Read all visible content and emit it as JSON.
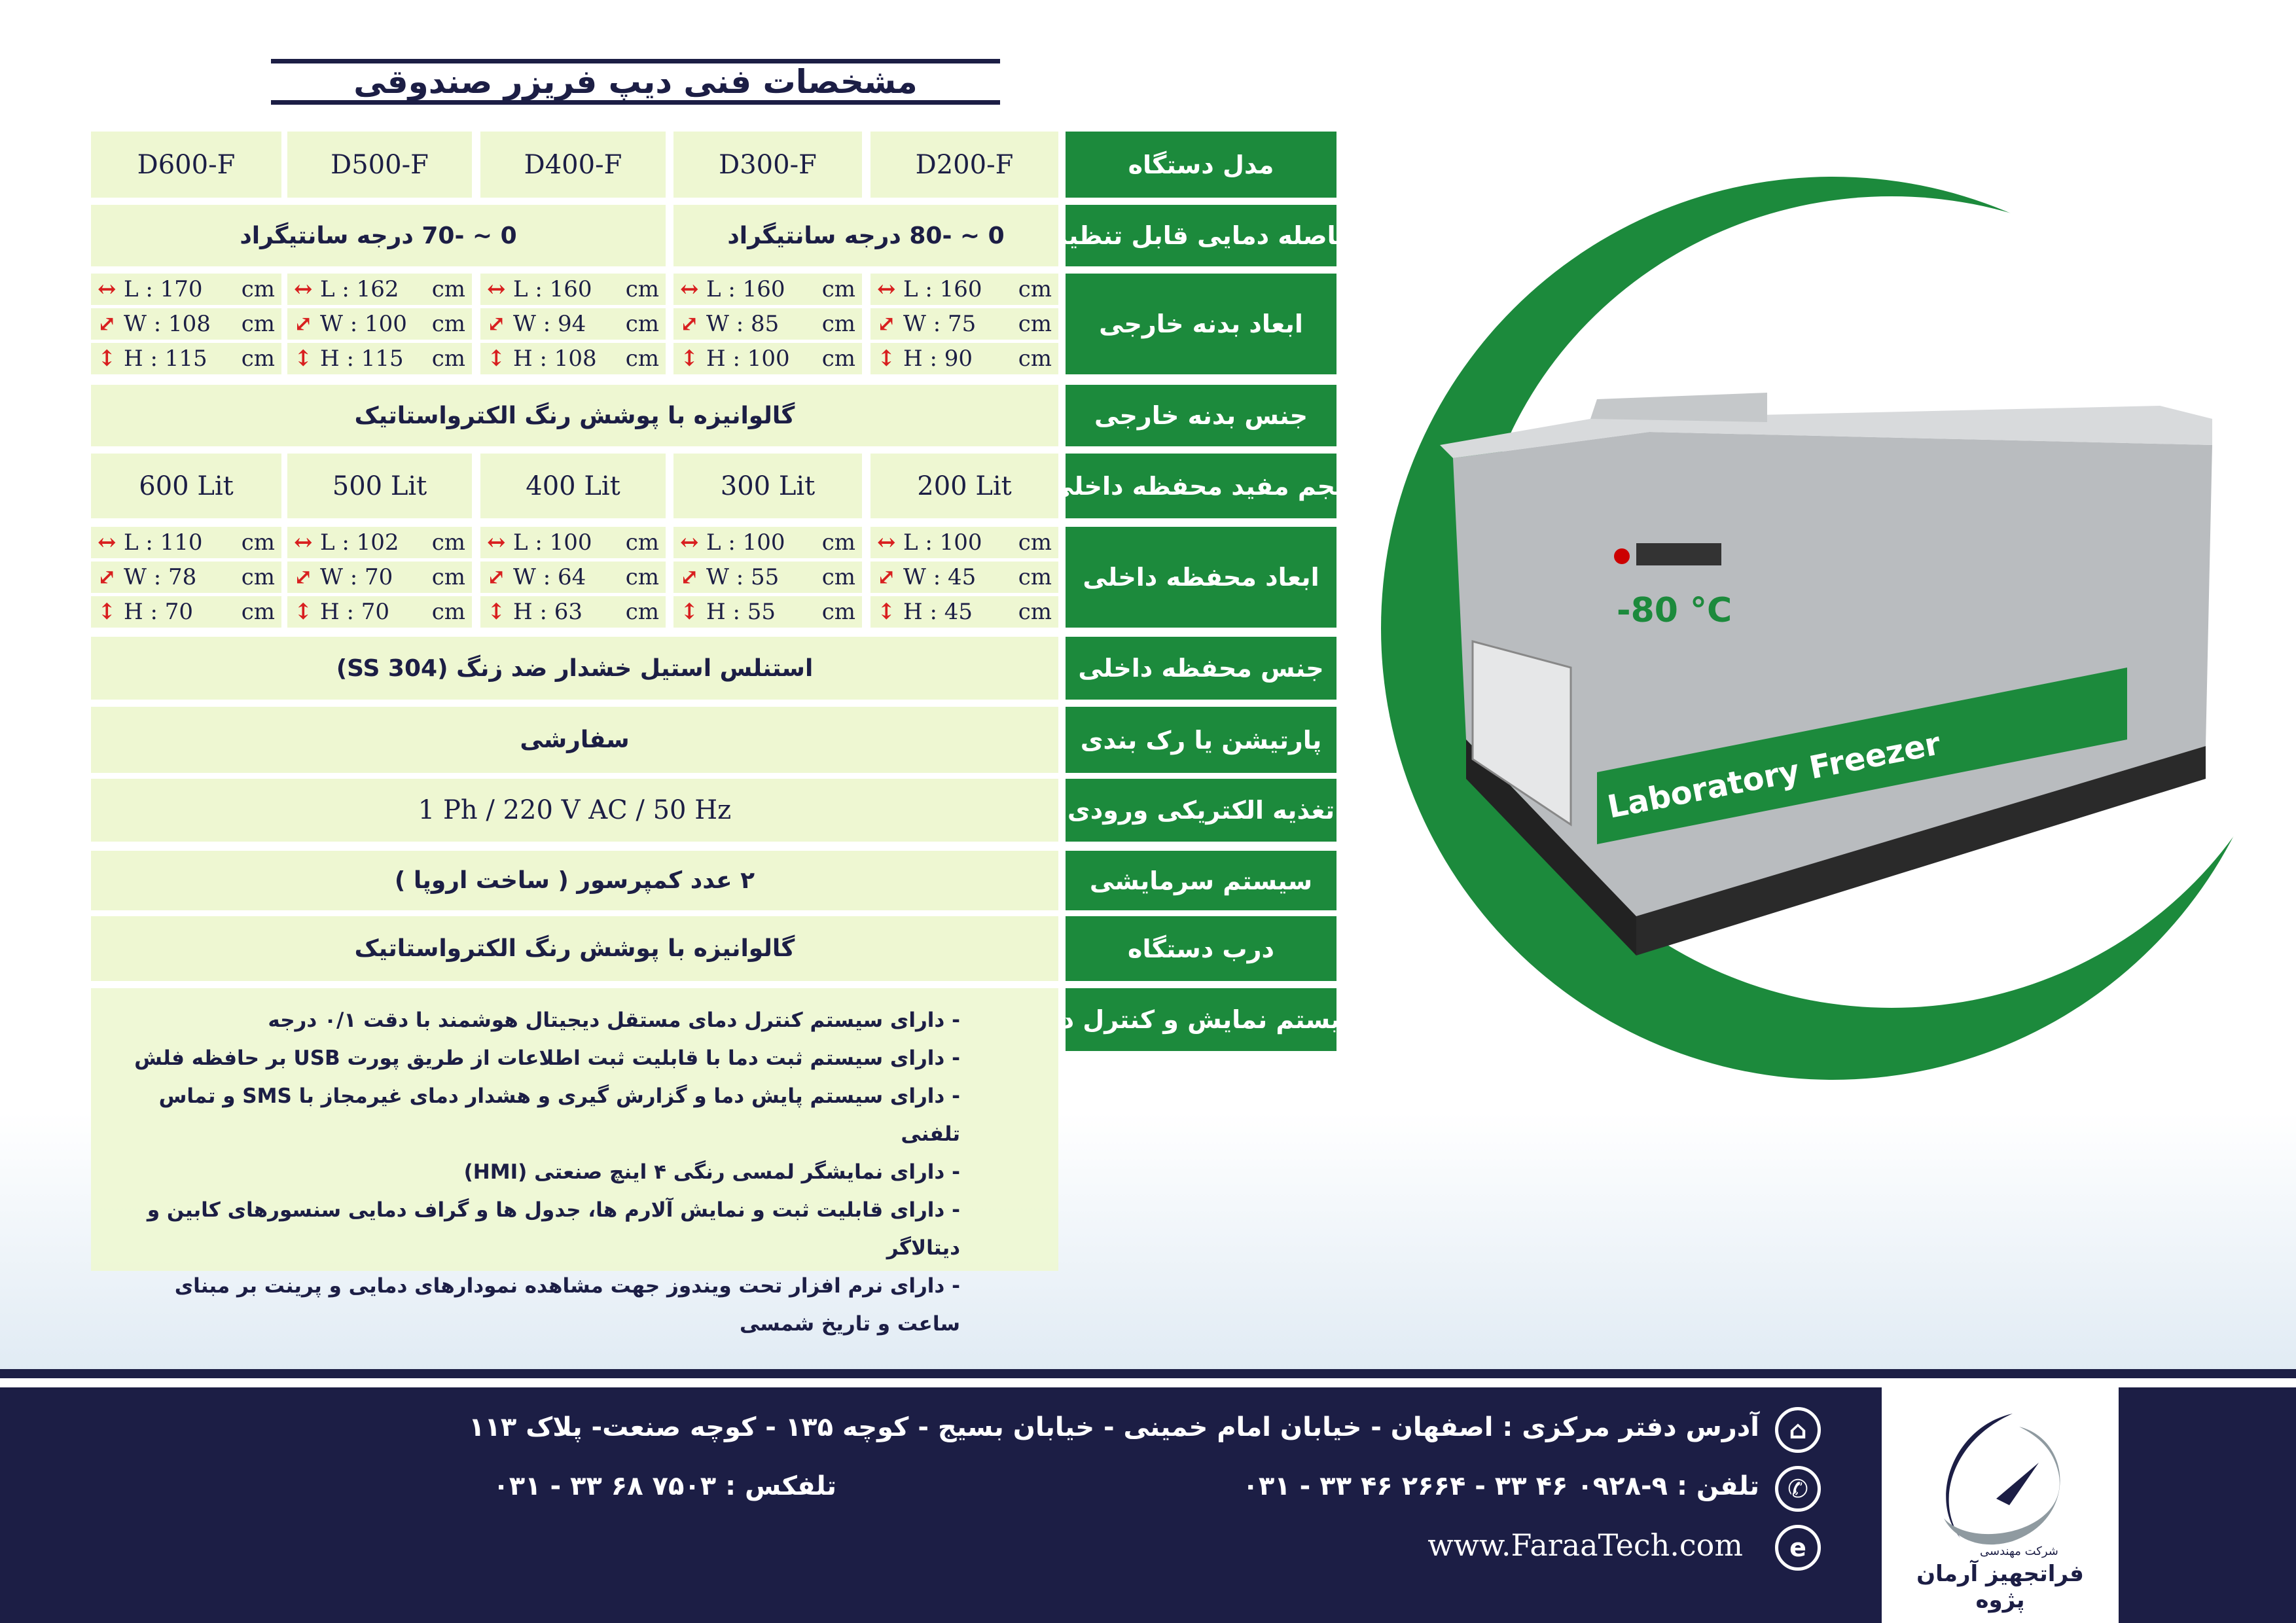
{
  "title": "مشخصات فنی دیپ فریزر صندوقی",
  "colors": {
    "label_bg": "#1c8a3c",
    "cell_bg": "#eef7d2",
    "navy": "#1c1e45",
    "arrow": "#d81f1f"
  },
  "rows": {
    "model": {
      "label": "مدل دستگاه",
      "values": [
        "D600-F",
        "D500-F",
        "D400-F",
        "D300-F",
        "D200-F"
      ]
    },
    "temp": {
      "label": "فاصله دمایی قابل تنظیم",
      "left": "0 ~ -70  درجه سانتیگراد",
      "right": "0 ~ -80  درجه سانتیگراد"
    },
    "ext_dims": {
      "label": "ابعاد بدنه خارجی",
      "unit": "cm",
      "values": [
        {
          "L": "L : 170",
          "W": "W : 108",
          "H": "H : 115"
        },
        {
          "L": "L : 162",
          "W": "W : 100",
          "H": "H : 115"
        },
        {
          "L": "L : 160",
          "W": "W : 94",
          "H": "H : 108"
        },
        {
          "L": "L : 160",
          "W": "W : 85",
          "H": "H : 100"
        },
        {
          "L": "L : 160",
          "W": "W : 75",
          "H": "H : 90"
        }
      ]
    },
    "ext_material": {
      "label": "جنس بدنه خارجی",
      "value": "گالوانیزه با پوشش رنگ الکترواستاتیک"
    },
    "volume": {
      "label": "حجم مفید محفظه داخلی",
      "values": [
        "600 Lit",
        "500 Lit",
        "400 Lit",
        "300 Lit",
        "200 Lit"
      ]
    },
    "int_dims": {
      "label": "ابعاد محفظه داخلی",
      "unit": "cm",
      "values": [
        {
          "L": "L : 110",
          "W": "W : 78",
          "H": "H : 70"
        },
        {
          "L": "L : 102",
          "W": "W : 70",
          "H": "H : 70"
        },
        {
          "L": "L : 100",
          "W": "W : 64",
          "H": "H : 63"
        },
        {
          "L": "L : 100",
          "W": "W : 55",
          "H": "H : 55"
        },
        {
          "L": "L : 100",
          "W": "W : 45",
          "H": "H : 45"
        }
      ]
    },
    "int_material": {
      "label": "جنس محفظه داخلی",
      "value": "استنلس استیل خشدار ضد زنگ (SS 304)"
    },
    "partition": {
      "label": "پارتیشن یا رک بندی",
      "value": "سفارشی"
    },
    "power": {
      "label": "تغذیه الکتریکی ورودی",
      "value": "1 Ph / 220 V AC / 50 Hz"
    },
    "cooling": {
      "label": "سیستم سرمایشی",
      "value": "۲ عدد کمپرسور ( ساخت اروپا )"
    },
    "door": {
      "label": "درب دستگاه",
      "value": "گالوانیزه با پوشش رنگ الکترواستاتیک"
    },
    "display": {
      "label": "سیستم نمایش و کنترل دما",
      "items": [
        "- دارای سیستم کنترل دمای مستقل دیجیتال هوشمند با دقت ۰/۱ درجه",
        "- دارای سیستم ثبت دما با قابلیت ثبت اطلاعات از طریق پورت USB بر حافظه فلش",
        "- دارای سیستم پایش دما و گزارش گیری و هشدار دمای غیرمجاز با SMS و تماس تلفنی",
        "- دارای نمایشگر لمسی رنگی ۴ اینچ صنعتی (HMI)",
        "- دارای قابلیت ثبت و نمایش آلارم ها، جدول ها و گراف دمایی سنسورهای کابین و دیتالاگر",
        "- دارای نرم افزار تحت ویندوز جهت مشاهده نمودارهای دمایی و پرینت بر مبنای ساعت و تاریخ شمسی"
      ]
    }
  },
  "product": {
    "temp_label": "-80 °C",
    "banner": "Laboratory Freezer"
  },
  "footer": {
    "address": "آدرس دفتر مرکزی : اصفهان - خیابان امام خمینی - خیابان بسیج - کوچه ۱۳۵ - کوچه صنعت- پلاک ۱۱۳",
    "phone": "تلفن : ۹-۰۹۲۸ ۴۶ ۳۳  -  ۲۶۶۴ ۴۶ ۳۳ - ۰۳۱",
    "fax": "تلفکس :  ۷۵۰۳ ۶۸ ۳۳ - ۰۳۱",
    "website": "www.FaraaTech.com",
    "logo_small": "شرکت مهندسی",
    "logo_name": "فراتجهیز آرمان پژوه",
    "icons": [
      "home-icon",
      "phone-icon",
      "web-icon"
    ]
  }
}
